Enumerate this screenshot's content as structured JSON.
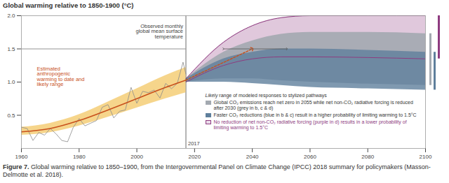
{
  "chart_data": {
    "type": "line",
    "title": "Global warming relative to 1850-1900 (°C)",
    "caption": {
      "label": "Figure 7.",
      "text": "Global warming relative to 1850–1900, from the Intergovernmental Panel on Climate Change (IPCC) 2018 summary for policymakers (Masson-Delmotte et al. 2018)."
    },
    "xlim": [
      1960,
      2100
    ],
    "xticks": [
      1960,
      1980,
      2000,
      2020,
      2040,
      2060,
      2080,
      2100
    ],
    "ylim": [
      0,
      2
    ],
    "yticks": [
      0.5,
      {
        "value": 1,
        "label": "1.0"
      },
      1.5,
      {
        "value": 2,
        "label": "2.0"
      }
    ],
    "grid": false,
    "marker_year": 2017,
    "threshold": 1.5,
    "crossing_years": [
      2030,
      2052
    ],
    "series": [
      {
        "name": "Observed monthly global mean surface temperature",
        "type": "line",
        "color": "#8a8a8a",
        "x": [
          1960,
          1962,
          1964,
          1966,
          1968,
          1970,
          1972,
          1974,
          1976,
          1978,
          1980,
          1982,
          1984,
          1986,
          1988,
          1990,
          1992,
          1994,
          1996,
          1998,
          2000,
          2002,
          2004,
          2006,
          2008,
          2010,
          2012,
          2014,
          2016,
          2017
        ],
        "values": [
          0.32,
          0.3,
          0.12,
          0.24,
          0.2,
          0.3,
          0.22,
          0.12,
          0.1,
          0.32,
          0.45,
          0.34,
          0.38,
          0.42,
          0.62,
          0.66,
          0.46,
          0.56,
          0.58,
          0.92,
          0.68,
          0.86,
          0.84,
          0.88,
          0.76,
          0.98,
          0.9,
          0.98,
          1.3,
          1.12
        ]
      },
      {
        "name": "Estimated anthropogenic warming to date and likely range",
        "type": "line",
        "color": "#c8501c",
        "x": [
          1960,
          1970,
          1980,
          1990,
          2000,
          2010,
          2017
        ],
        "values": [
          0.25,
          0.3,
          0.42,
          0.58,
          0.75,
          0.92,
          1.03
        ],
        "range": {
          "color": "#f2c35a",
          "low": [
            0.2,
            0.24,
            0.34,
            0.47,
            0.61,
            0.75,
            0.84
          ],
          "high": [
            0.32,
            0.38,
            0.51,
            0.7,
            0.9,
            1.1,
            1.22
          ]
        }
      },
      {
        "type": "line",
        "line_style": "dashed",
        "marker": "arrow",
        "color": "#c8501c",
        "x": [
          2017,
          2040
        ],
        "values": [
          1.03,
          1.5
        ]
      }
    ],
    "pathways": {
      "title": "Likely range of modeled responses to stylized pathways",
      "x": [
        2017,
        2030,
        2040,
        2050,
        2060,
        2080,
        2100
      ],
      "ranges": [
        {
          "name": "Global CO₂ emissions reach net zero in 2055 while net non-CO₂ radiative forcing is reduced after 2030 (grey in b, c & d)",
          "color": "#a3a9b0",
          "low": [
            1.0,
            1.05,
            1.05,
            1.02,
            1.0,
            0.97,
            0.95
          ],
          "high": [
            1.05,
            1.45,
            1.62,
            1.72,
            1.75,
            1.75,
            1.73
          ]
        },
        {
          "name": "Faster CO₂ reductions (blue in b & c) result in a higher probability of limiting warming to 1.5°C",
          "color": "#5f7f9c",
          "low": [
            1.0,
            1.0,
            0.98,
            0.95,
            0.92,
            0.9,
            0.88
          ],
          "high": [
            1.05,
            1.35,
            1.45,
            1.5,
            1.5,
            1.48,
            1.45
          ]
        },
        {
          "name": "No reduction of net non-CO₂ radiative forcing (purple in d) results in a lower probability of limiting warming to 1.5°C",
          "color": "#8e3b80",
          "low": [
            1.0,
            1.25,
            1.35,
            1.38,
            1.38,
            1.37,
            1.35
          ],
          "high": [
            1.05,
            1.6,
            1.85,
            1.97,
            2.0,
            2.0,
            2.0
          ]
        }
      ]
    }
  }
}
